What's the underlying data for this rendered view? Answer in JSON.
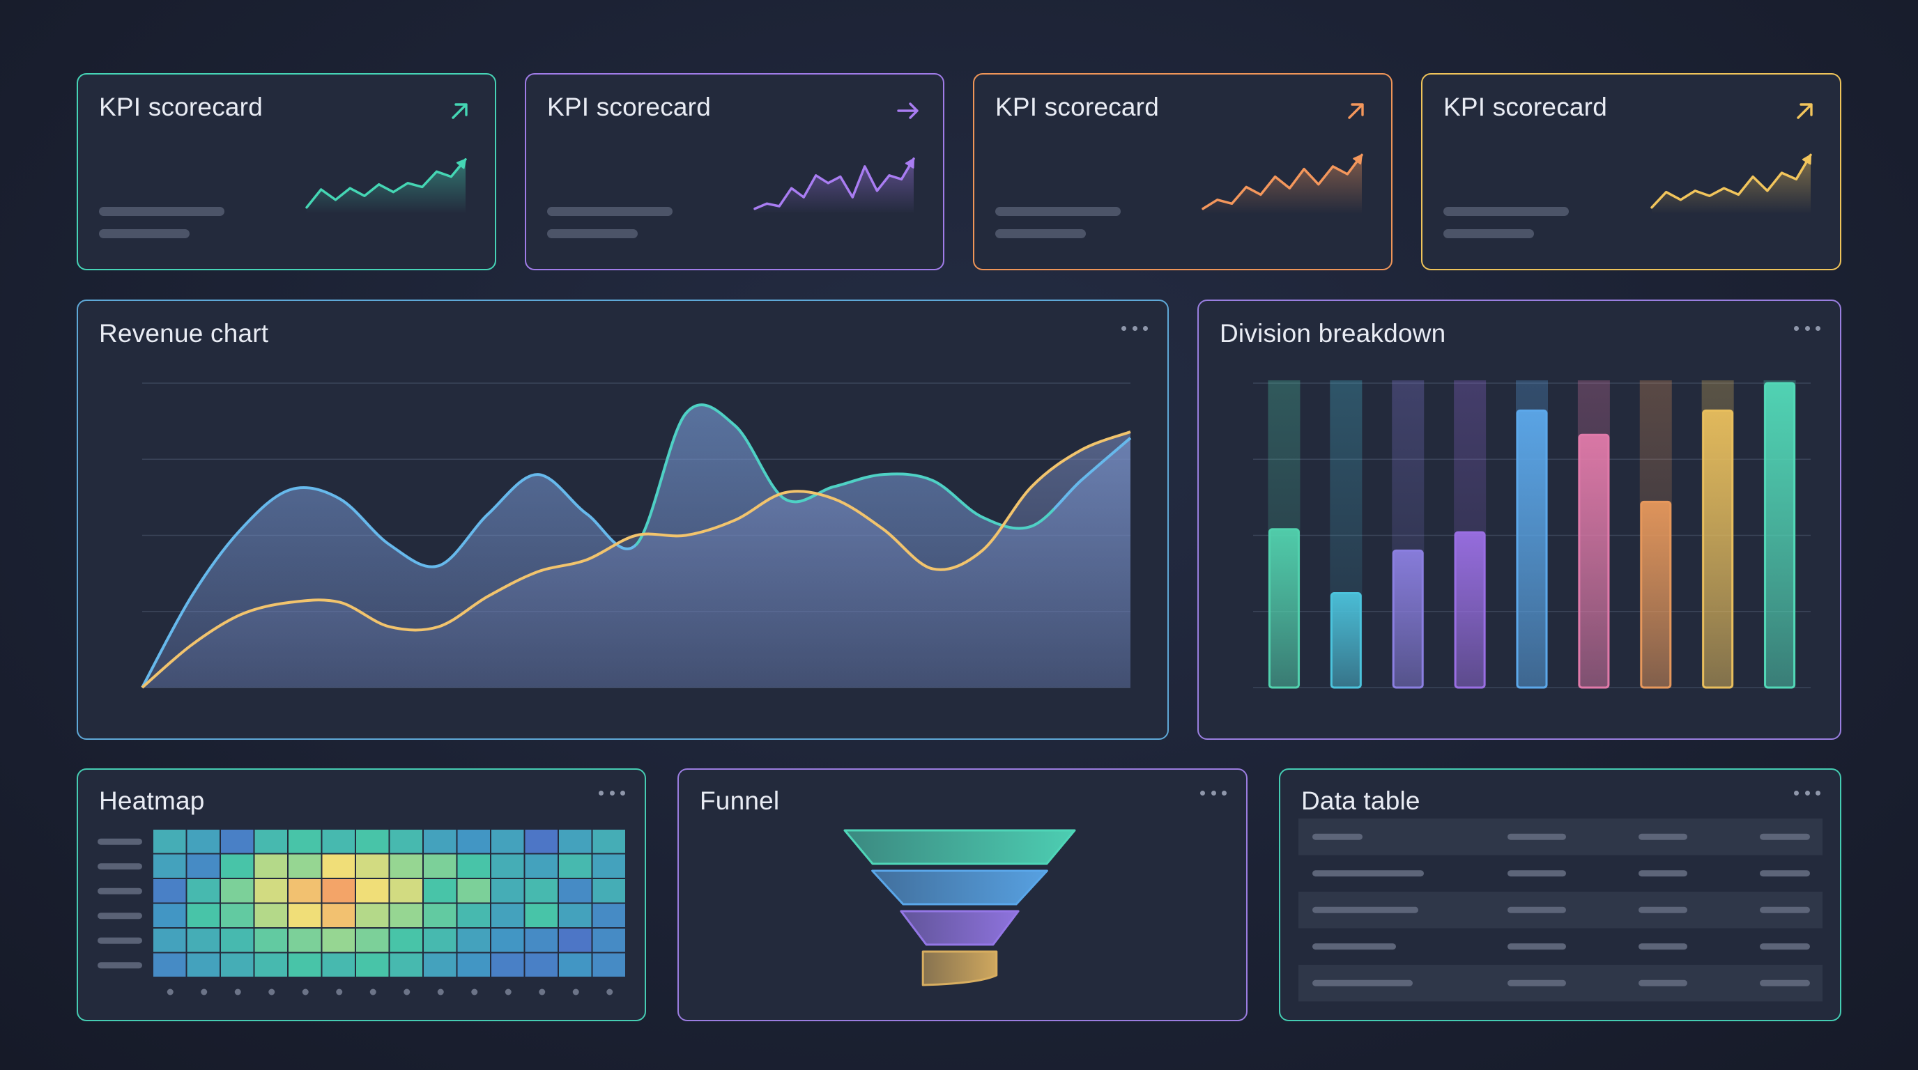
{
  "kpi_cards": [
    {
      "title": "KPI scorecard",
      "color": "#45d6b4",
      "arrow": "up-right-arrow-icon",
      "spark": [
        10,
        38,
        22,
        40,
        28,
        46,
        34,
        48,
        42,
        66,
        58,
        85
      ]
    },
    {
      "title": "KPI scorecard",
      "color": "#a97df2",
      "arrow": "right-arrow-icon",
      "spark": [
        8,
        16,
        12,
        40,
        26,
        60,
        48,
        58,
        26,
        74,
        36,
        60,
        54,
        86
      ]
    },
    {
      "title": "KPI scorecard",
      "color": "#f4975c",
      "arrow": "up-right-arrow-icon",
      "spark": [
        8,
        22,
        16,
        42,
        30,
        58,
        40,
        70,
        46,
        74,
        62,
        92
      ]
    },
    {
      "title": "KPI scorecard",
      "color": "#f2c55c",
      "arrow": "up-right-arrow-icon",
      "spark": [
        10,
        34,
        22,
        36,
        28,
        40,
        30,
        58,
        36,
        64,
        54,
        92
      ]
    }
  ],
  "revenue": {
    "title": "Revenue chart",
    "menu_icon": "more-dots-icon",
    "colors": {
      "blue": "#67b9ec",
      "teal": "#4fd1c5",
      "gold": "#f2c46d",
      "purple": "#8a74d6"
    }
  },
  "division": {
    "title": "Division breakdown",
    "menu_icon": "more-dots-icon"
  },
  "heatmap": {
    "title": "Heatmap",
    "menu_icon": "more-dots-icon"
  },
  "funnel": {
    "title": "Funnel",
    "menu_icon": "more-dots-icon"
  },
  "table": {
    "title": "Data table",
    "menu_icon": "more-dots-icon"
  },
  "chart_data": [
    {
      "type": "area",
      "title": "Revenue chart",
      "x": [
        0,
        1,
        2,
        3,
        4,
        5,
        6,
        7,
        8,
        9,
        10,
        11,
        12,
        13,
        14,
        15,
        16,
        17,
        18,
        19,
        20
      ],
      "series": [
        {
          "values": [
            0,
            30,
            52,
            65,
            62,
            47,
            40,
            57,
            70,
            57,
            47,
            90,
            86,
            62,
            66,
            70,
            68,
            56,
            53,
            68,
            82
          ]
        },
        {
          "values": [
            0,
            14,
            24,
            28,
            28,
            20,
            20,
            30,
            38,
            42,
            50,
            50,
            55,
            64,
            62,
            52,
            39,
            45,
            66,
            78,
            84
          ]
        }
      ],
      "ylim": [
        0,
        100
      ],
      "grid": true
    },
    {
      "type": "bar",
      "title": "Division breakdown",
      "values": [
        52,
        31,
        45,
        51,
        91,
        83,
        61,
        91,
        100
      ],
      "colors": [
        "#52d2ae",
        "#4cc3dc",
        "#8b7fe0",
        "#9a6fe3",
        "#5ca8ea",
        "#e07aa9",
        "#e6985c",
        "#e8be5d",
        "#52d8b7"
      ],
      "ylim": [
        0,
        100
      ],
      "grid": true
    },
    {
      "type": "heatmap",
      "title": "Heatmap",
      "rows": 6,
      "cols": 14,
      "values": [
        [
          0.35,
          0.3,
          0.15,
          0.4,
          0.45,
          0.4,
          0.45,
          0.4,
          0.3,
          0.25,
          0.3,
          0.1,
          0.3,
          0.35
        ],
        [
          0.3,
          0.2,
          0.45,
          0.65,
          0.6,
          0.75,
          0.7,
          0.6,
          0.55,
          0.45,
          0.35,
          0.3,
          0.4,
          0.3
        ],
        [
          0.15,
          0.4,
          0.55,
          0.7,
          0.85,
          0.95,
          0.75,
          0.7,
          0.45,
          0.55,
          0.35,
          0.4,
          0.2,
          0.35
        ],
        [
          0.25,
          0.45,
          0.5,
          0.65,
          0.75,
          0.85,
          0.65,
          0.6,
          0.5,
          0.4,
          0.3,
          0.45,
          0.3,
          0.2
        ],
        [
          0.3,
          0.35,
          0.4,
          0.5,
          0.55,
          0.6,
          0.55,
          0.45,
          0.4,
          0.3,
          0.25,
          0.2,
          0.1,
          0.2
        ],
        [
          0.2,
          0.3,
          0.35,
          0.4,
          0.45,
          0.4,
          0.45,
          0.4,
          0.3,
          0.25,
          0.15,
          0.15,
          0.25,
          0.2
        ]
      ]
    },
    {
      "type": "funnel",
      "title": "Funnel",
      "values": [
        100,
        76,
        51,
        32
      ],
      "colors": [
        "#4fd6b8",
        "#5aa7ea",
        "#9477e6",
        "#d8ae60"
      ]
    },
    {
      "type": "table",
      "title": "Data table",
      "rows": 5,
      "columns": 4
    }
  ]
}
